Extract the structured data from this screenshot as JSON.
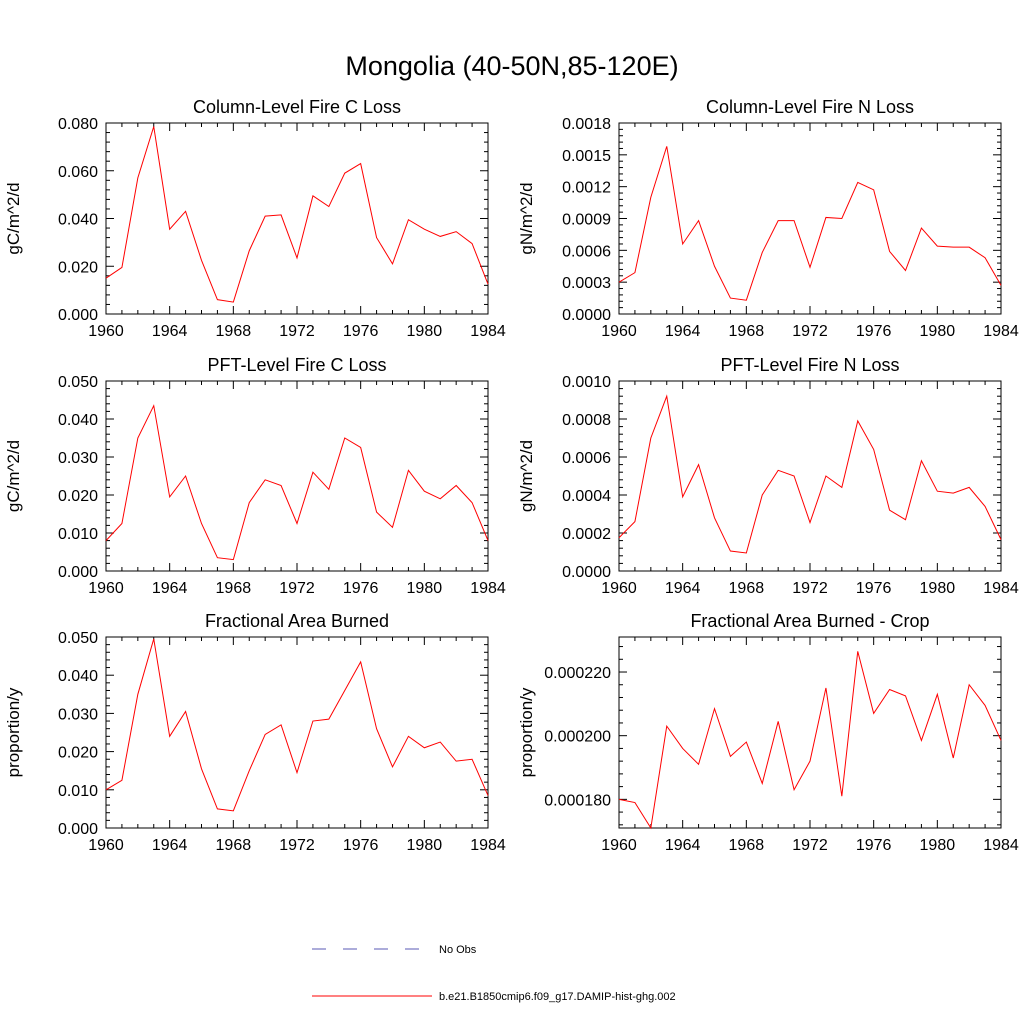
{
  "figure": {
    "title": "Mongolia (40-50N,85-120E)"
  },
  "chart_data": [
    {
      "type": "line",
      "title": "Column-Level Fire C Loss",
      "xlabel": "",
      "ylabel": "gC/m^2/d",
      "xlim": [
        1960,
        1984
      ],
      "ylim": [
        0,
        0.08
      ],
      "xticks": [
        "1960",
        "1964",
        "1968",
        "1972",
        "1976",
        "1980",
        "1984"
      ],
      "yticks": [
        "0.000",
        "0.020",
        "0.040",
        "0.060",
        "0.080"
      ],
      "x": [
        1960,
        1961,
        1962,
        1963,
        1964,
        1965,
        1966,
        1967,
        1968,
        1969,
        1970,
        1971,
        1972,
        1973,
        1974,
        1975,
        1976,
        1977,
        1978,
        1979,
        1980,
        1981,
        1982,
        1983,
        1984
      ],
      "series": [
        {
          "name": "b.e21.B1850cmip6.f09_g17.DAMIP-hist-ghg.002",
          "values": [
            0.015,
            0.0195,
            0.057,
            0.0785,
            0.0355,
            0.043,
            0.0225,
            0.006,
            0.005,
            0.0265,
            0.041,
            0.0415,
            0.0235,
            0.0495,
            0.045,
            0.059,
            0.063,
            0.032,
            0.021,
            0.0395,
            0.0355,
            0.0325,
            0.0345,
            0.0295,
            0.0125
          ]
        }
      ]
    },
    {
      "type": "line",
      "title": "Column-Level Fire N Loss",
      "xlabel": "",
      "ylabel": "gN/m^2/d",
      "xlim": [
        1960,
        1984
      ],
      "ylim": [
        0,
        0.0018
      ],
      "xticks": [
        "1960",
        "1964",
        "1968",
        "1972",
        "1976",
        "1980",
        "1984"
      ],
      "yticks": [
        "0.0000",
        "0.0003",
        "0.0006",
        "0.0009",
        "0.0012",
        "0.0015",
        "0.0018"
      ],
      "x": [
        1960,
        1961,
        1962,
        1963,
        1964,
        1965,
        1966,
        1967,
        1968,
        1969,
        1970,
        1971,
        1972,
        1973,
        1974,
        1975,
        1976,
        1977,
        1978,
        1979,
        1980,
        1981,
        1982,
        1983,
        1984
      ],
      "series": [
        {
          "name": "b.e21.B1850cmip6.f09_g17.DAMIP-hist-ghg.002",
          "values": [
            0.0003,
            0.00039,
            0.0011,
            0.00158,
            0.00066,
            0.00088,
            0.00045,
            0.00015,
            0.00013,
            0.00058,
            0.00088,
            0.00088,
            0.00044,
            0.00091,
            0.0009,
            0.00124,
            0.00117,
            0.00059,
            0.00041,
            0.00081,
            0.00064,
            0.00063,
            0.00063,
            0.00053,
            0.00027
          ]
        }
      ]
    },
    {
      "type": "line",
      "title": "PFT-Level Fire C Loss",
      "xlabel": "",
      "ylabel": "gC/m^2/d",
      "xlim": [
        1960,
        1984
      ],
      "ylim": [
        0,
        0.05
      ],
      "xticks": [
        "1960",
        "1964",
        "1968",
        "1972",
        "1976",
        "1980",
        "1984"
      ],
      "yticks": [
        "0.000",
        "0.010",
        "0.020",
        "0.030",
        "0.040",
        "0.050"
      ],
      "x": [
        1960,
        1961,
        1962,
        1963,
        1964,
        1965,
        1966,
        1967,
        1968,
        1969,
        1970,
        1971,
        1972,
        1973,
        1974,
        1975,
        1976,
        1977,
        1978,
        1979,
        1980,
        1981,
        1982,
        1983,
        1984
      ],
      "series": [
        {
          "name": "b.e21.B1850cmip6.f09_g17.DAMIP-hist-ghg.002",
          "values": [
            0.008,
            0.0125,
            0.035,
            0.0435,
            0.0195,
            0.025,
            0.0125,
            0.0035,
            0.003,
            0.018,
            0.024,
            0.0225,
            0.0125,
            0.026,
            0.0215,
            0.035,
            0.0325,
            0.0155,
            0.0115,
            0.0265,
            0.021,
            0.019,
            0.0225,
            0.018,
            0.008
          ]
        }
      ]
    },
    {
      "type": "line",
      "title": "PFT-Level Fire N Loss",
      "xlabel": "",
      "ylabel": "gN/m^2/d",
      "xlim": [
        1960,
        1984
      ],
      "ylim": [
        0,
        0.001
      ],
      "xticks": [
        "1960",
        "1964",
        "1968",
        "1972",
        "1976",
        "1980",
        "1984"
      ],
      "yticks": [
        "0.0000",
        "0.0002",
        "0.0004",
        "0.0006",
        "0.0008",
        "0.0010"
      ],
      "x": [
        1960,
        1961,
        1962,
        1963,
        1964,
        1965,
        1966,
        1967,
        1968,
        1969,
        1970,
        1971,
        1972,
        1973,
        1974,
        1975,
        1976,
        1977,
        1978,
        1979,
        1980,
        1981,
        1982,
        1983,
        1984
      ],
      "series": [
        {
          "name": "b.e21.B1850cmip6.f09_g17.DAMIP-hist-ghg.002",
          "values": [
            0.000175,
            0.00026,
            0.0007,
            0.00092,
            0.00039,
            0.00056,
            0.00028,
            0.000105,
            9.5e-05,
            0.0004,
            0.00053,
            0.0005,
            0.000255,
            0.0005,
            0.00044,
            0.00079,
            0.00064,
            0.00032,
            0.00027,
            0.00058,
            0.00042,
            0.00041,
            0.00044,
            0.00034,
            0.000165
          ]
        }
      ]
    },
    {
      "type": "line",
      "title": "Fractional Area Burned",
      "xlabel": "",
      "ylabel": "proportion/y",
      "xlim": [
        1960,
        1984
      ],
      "ylim": [
        0,
        0.05
      ],
      "xticks": [
        "1960",
        "1964",
        "1968",
        "1972",
        "1976",
        "1980",
        "1984"
      ],
      "yticks": [
        "0.000",
        "0.010",
        "0.020",
        "0.030",
        "0.040",
        "0.050"
      ],
      "x": [
        1960,
        1961,
        1962,
        1963,
        1964,
        1965,
        1966,
        1967,
        1968,
        1969,
        1970,
        1971,
        1972,
        1973,
        1974,
        1975,
        1976,
        1977,
        1978,
        1979,
        1980,
        1981,
        1982,
        1983,
        1984
      ],
      "series": [
        {
          "name": "b.e21.B1850cmip6.f09_g17.DAMIP-hist-ghg.002",
          "values": [
            0.01,
            0.0125,
            0.035,
            0.0495,
            0.024,
            0.0305,
            0.0155,
            0.005,
            0.0045,
            0.015,
            0.0245,
            0.027,
            0.0145,
            0.028,
            0.0285,
            0.036,
            0.0435,
            0.026,
            0.016,
            0.024,
            0.021,
            0.0225,
            0.0175,
            0.018,
            0.0085
          ]
        }
      ]
    },
    {
      "type": "line",
      "title": "Fractional Area Burned - Crop",
      "xlabel": "",
      "ylabel": "proportion/y",
      "xlim": [
        1960,
        1984
      ],
      "ylim": [
        0.000171,
        0.000231
      ],
      "xticks": [
        "1960",
        "1964",
        "1968",
        "1972",
        "1976",
        "1980",
        "1984"
      ],
      "yticks": [
        "0.000180",
        "0.000200",
        "0.000220"
      ],
      "ytick_values": [
        0.00018,
        0.0002,
        0.00022
      ],
      "x": [
        1960,
        1961,
        1962,
        1963,
        1964,
        1965,
        1966,
        1967,
        1968,
        1969,
        1970,
        1971,
        1972,
        1973,
        1974,
        1975,
        1976,
        1977,
        1978,
        1979,
        1980,
        1981,
        1982,
        1983,
        1984
      ],
      "series": [
        {
          "name": "b.e21.B1850cmip6.f09_g17.DAMIP-hist-ghg.002",
          "values": [
            0.00018,
            0.000179,
            0.000171,
            0.000203,
            0.000196,
            0.000191,
            0.0002085,
            0.0001935,
            0.000198,
            0.000185,
            0.0002045,
            0.000183,
            0.000192,
            0.000215,
            0.000181,
            0.0002265,
            0.000207,
            0.0002145,
            0.0002125,
            0.0001985,
            0.000213,
            0.000193,
            0.000216,
            0.0002095,
            0.0001985
          ]
        }
      ]
    }
  ],
  "legend": {
    "items": [
      {
        "label": "No Obs",
        "color": "#5a5ab4",
        "style": "dashed"
      },
      {
        "label": "b.e21.B1850cmip6.f09_g17.DAMIP-hist-ghg.002",
        "color": "#ff0000",
        "style": "solid"
      }
    ]
  },
  "colors": {
    "series": "#ff0000",
    "axes": "#000000"
  }
}
